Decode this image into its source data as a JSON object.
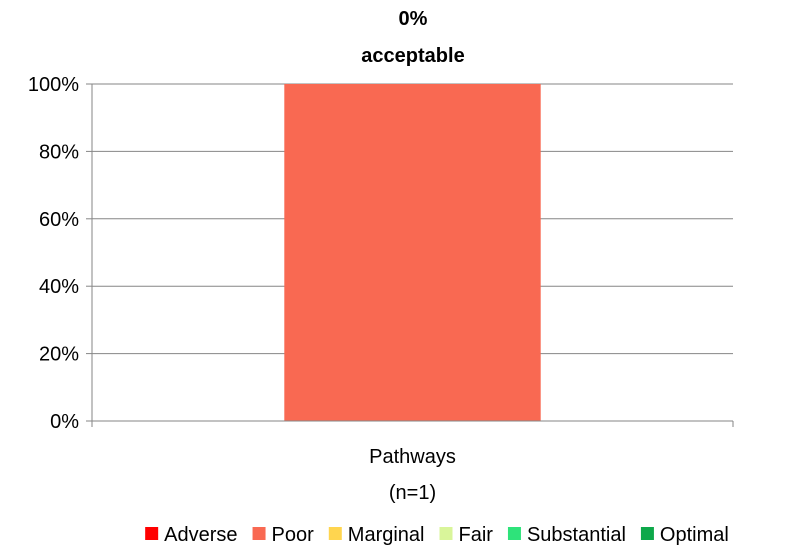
{
  "chart_data": {
    "type": "bar",
    "stacked": true,
    "title_line1": "0%",
    "title_line2": "acceptable",
    "categories": [
      {
        "line1": "Pathways",
        "line2": "(n=1)"
      }
    ],
    "series": [
      {
        "name": "Adverse",
        "color": "#ff0000",
        "values": [
          0
        ]
      },
      {
        "name": "Poor",
        "color": "#f96952",
        "values": [
          100
        ]
      },
      {
        "name": "Marginal",
        "color": "#ffd54f",
        "values": [
          0
        ]
      },
      {
        "name": "Fair",
        "color": "#d9f59a",
        "values": [
          0
        ]
      },
      {
        "name": "Substantial",
        "color": "#2ee37a",
        "values": [
          0
        ]
      },
      {
        "name": "Optimal",
        "color": "#0ea84a",
        "values": [
          0
        ]
      }
    ],
    "y_ticks": [
      "0%",
      "20%",
      "40%",
      "60%",
      "80%",
      "100%"
    ],
    "ylim": [
      0,
      100
    ],
    "grid": true,
    "legend_position": "bottom"
  }
}
